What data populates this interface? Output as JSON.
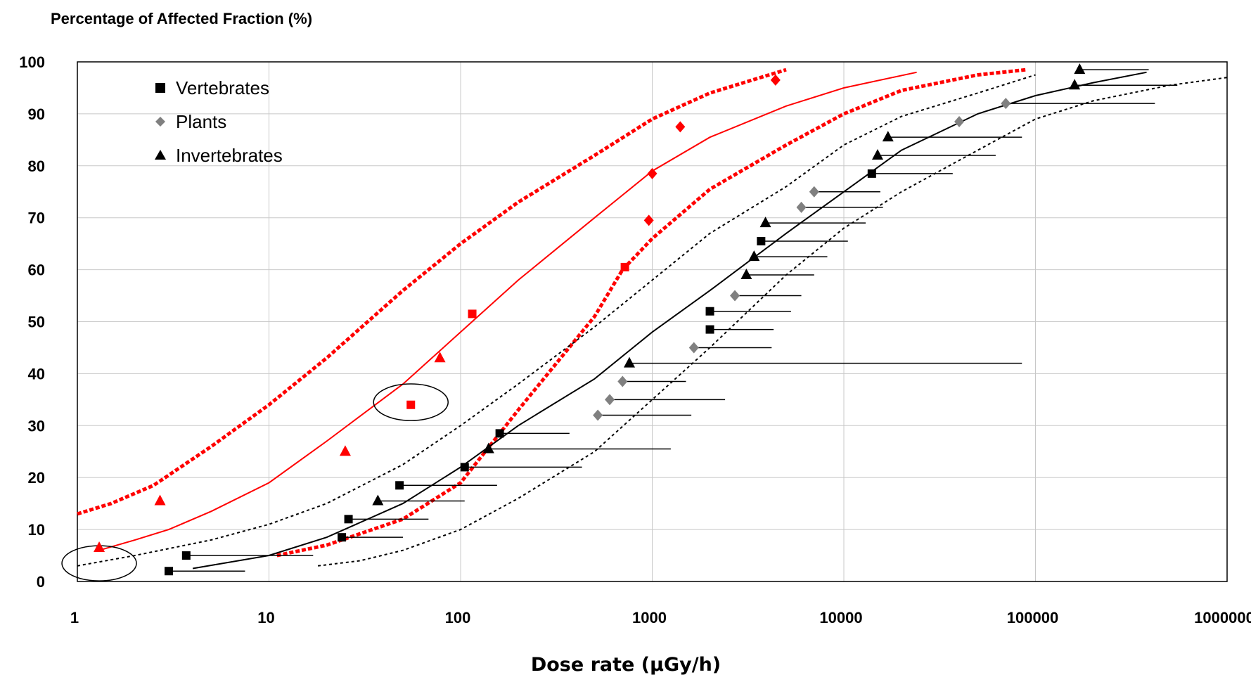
{
  "chart_data": {
    "type": "scatter",
    "title": "Percentage of Affected Fraction (%)",
    "xlabel": "Dose rate (µGy/h)",
    "ylabel": "Percentage of Affected Fraction (%)",
    "x_scale": "log",
    "xlim": [
      1,
      1000000
    ],
    "ylim": [
      0,
      100
    ],
    "grid": true,
    "legend_position": "top-left",
    "x_ticks": [
      "1",
      "10",
      "100",
      "1000",
      "10000",
      "100000",
      "1000000"
    ],
    "y_ticks": [
      "0",
      "10",
      "20",
      "30",
      "40",
      "50",
      "60",
      "70",
      "80",
      "90",
      "100"
    ],
    "legend": [
      {
        "label": "Vertebrates",
        "marker": "square"
      },
      {
        "label": "Plants",
        "marker": "diamond"
      },
      {
        "label": "Invertebrates",
        "marker": "triangle"
      }
    ],
    "colors": {
      "black": "#000000",
      "red": "#ff0000",
      "gray": "#808080"
    },
    "black_points": [
      {
        "group": "Vertebrates",
        "marker": "square",
        "x": 3.0,
        "y": 2,
        "x_upper": 7.5
      },
      {
        "group": "Vertebrates",
        "marker": "square",
        "x": 3.7,
        "y": 5,
        "x_upper": 17
      },
      {
        "group": "Vertebrates",
        "marker": "square",
        "x": 24,
        "y": 8.5,
        "x_upper": 50
      },
      {
        "group": "Vertebrates",
        "marker": "square",
        "x": 26,
        "y": 12,
        "x_upper": 68
      },
      {
        "group": "Vertebrates",
        "marker": "square",
        "x": 48,
        "y": 18.5,
        "x_upper": 155
      },
      {
        "group": "Vertebrates",
        "marker": "square",
        "x": 105,
        "y": 22,
        "x_upper": 430
      },
      {
        "group": "Vertebrates",
        "marker": "square",
        "x": 160,
        "y": 28.5,
        "x_upper": 370
      },
      {
        "group": "Vertebrates",
        "marker": "square",
        "x": 2000,
        "y": 48.5,
        "x_upper": 4300
      },
      {
        "group": "Vertebrates",
        "marker": "square",
        "x": 2000,
        "y": 52,
        "x_upper": 5300
      },
      {
        "group": "Vertebrates",
        "marker": "square",
        "x": 3700,
        "y": 65.5,
        "x_upper": 10500
      },
      {
        "group": "Vertebrates",
        "marker": "square",
        "x": 14000,
        "y": 78.5,
        "x_upper": 37000
      },
      {
        "group": "Plants",
        "marker": "diamond",
        "x": 520,
        "y": 32,
        "x_upper": 1600
      },
      {
        "group": "Plants",
        "marker": "diamond",
        "x": 600,
        "y": 35,
        "x_upper": 2400
      },
      {
        "group": "Plants",
        "marker": "diamond",
        "x": 700,
        "y": 38.5,
        "x_upper": 1500
      },
      {
        "group": "Plants",
        "marker": "diamond",
        "x": 1650,
        "y": 45,
        "x_upper": 4200
      },
      {
        "group": "Plants",
        "marker": "diamond",
        "x": 2700,
        "y": 55,
        "x_upper": 6000
      },
      {
        "group": "Plants",
        "marker": "diamond",
        "x": 6000,
        "y": 72,
        "x_upper": 16000
      },
      {
        "group": "Plants",
        "marker": "diamond",
        "x": 7000,
        "y": 75,
        "x_upper": 15500
      },
      {
        "group": "Plants",
        "marker": "diamond",
        "x": 40000,
        "y": 88.5
      },
      {
        "group": "Plants",
        "marker": "diamond",
        "x": 70000,
        "y": 92,
        "x_upper": 420000
      },
      {
        "group": "Invertebrates",
        "marker": "triangle",
        "x": 37,
        "y": 15.5,
        "x_upper": 105
      },
      {
        "group": "Invertebrates",
        "marker": "triangle",
        "x": 140,
        "y": 25.5,
        "x_upper": 1250
      },
      {
        "group": "Invertebrates",
        "marker": "triangle",
        "x": 760,
        "y": 42,
        "x_upper": 85000
      },
      {
        "group": "Invertebrates",
        "marker": "triangle",
        "x": 3100,
        "y": 59,
        "x_upper": 7000
      },
      {
        "group": "Invertebrates",
        "marker": "triangle",
        "x": 3400,
        "y": 62.5,
        "x_upper": 8200
      },
      {
        "group": "Invertebrates",
        "marker": "triangle",
        "x": 3900,
        "y": 69,
        "x_upper": 13000
      },
      {
        "group": "Invertebrates",
        "marker": "triangle",
        "x": 15000,
        "y": 82,
        "x_upper": 62000
      },
      {
        "group": "Invertebrates",
        "marker": "triangle",
        "x": 17000,
        "y": 85.5,
        "x_upper": 85000
      },
      {
        "group": "Invertebrates",
        "marker": "triangle",
        "x": 160000,
        "y": 95.5,
        "x_upper": 550000
      },
      {
        "group": "Invertebrates",
        "marker": "triangle",
        "x": 170000,
        "y": 98.5,
        "x_upper": 390000
      }
    ],
    "red_points": [
      {
        "marker": "triangle",
        "x": 1.3,
        "y": 6.5
      },
      {
        "marker": "triangle",
        "x": 2.7,
        "y": 15.5
      },
      {
        "marker": "triangle",
        "x": 25,
        "y": 25
      },
      {
        "marker": "square",
        "x": 55,
        "y": 34
      },
      {
        "marker": "triangle",
        "x": 78,
        "y": 43
      },
      {
        "marker": "square",
        "x": 115,
        "y": 51.5
      },
      {
        "marker": "square",
        "x": 720,
        "y": 60.5
      },
      {
        "marker": "diamond",
        "x": 960,
        "y": 69.5
      },
      {
        "marker": "diamond",
        "x": 1000,
        "y": 78.5
      },
      {
        "marker": "diamond",
        "x": 1400,
        "y": 87.5
      },
      {
        "marker": "diamond",
        "x": 4400,
        "y": 96.5
      }
    ],
    "curves": [
      {
        "color": "red",
        "style": "solid",
        "points": [
          [
            1.3,
            6
          ],
          [
            2,
            8
          ],
          [
            3,
            10
          ],
          [
            5,
            13.5
          ],
          [
            10,
            19
          ],
          [
            20,
            27
          ],
          [
            50,
            38
          ],
          [
            100,
            48
          ],
          [
            200,
            58
          ],
          [
            500,
            70
          ],
          [
            1000,
            79
          ],
          [
            2000,
            85.5
          ],
          [
            5000,
            91.5
          ],
          [
            10000,
            95
          ],
          [
            24000,
            98
          ]
        ]
      },
      {
        "color": "red",
        "style": "dashed",
        "points": [
          [
            1,
            13
          ],
          [
            1.5,
            15
          ],
          [
            2.5,
            18.5
          ],
          [
            5,
            26
          ],
          [
            10,
            34
          ],
          [
            20,
            43
          ],
          [
            50,
            56
          ],
          [
            100,
            65
          ],
          [
            200,
            73
          ],
          [
            500,
            82
          ],
          [
            1000,
            89
          ],
          [
            2000,
            94
          ],
          [
            5000,
            98.5
          ]
        ]
      },
      {
        "color": "red",
        "style": "dashed",
        "points": [
          [
            11,
            5
          ],
          [
            20,
            7
          ],
          [
            50,
            12
          ],
          [
            100,
            19
          ],
          [
            200,
            33
          ],
          [
            500,
            51
          ],
          [
            700,
            60
          ],
          [
            1000,
            66
          ],
          [
            2000,
            75.5
          ],
          [
            5000,
            84
          ],
          [
            10000,
            90
          ],
          [
            20000,
            94.5
          ],
          [
            50000,
            97.5
          ],
          [
            90000,
            98.5
          ]
        ]
      },
      {
        "color": "black",
        "style": "solid",
        "points": [
          [
            4,
            2.5
          ],
          [
            10,
            5
          ],
          [
            20,
            8.5
          ],
          [
            50,
            15
          ],
          [
            100,
            22
          ],
          [
            200,
            30
          ],
          [
            500,
            39
          ],
          [
            1000,
            48
          ],
          [
            2000,
            56
          ],
          [
            5000,
            67
          ],
          [
            10000,
            75
          ],
          [
            20000,
            83
          ],
          [
            50000,
            90
          ],
          [
            100000,
            93.5
          ],
          [
            200000,
            96
          ],
          [
            380000,
            98
          ]
        ]
      },
      {
        "color": "black",
        "style": "dotted",
        "points": [
          [
            1,
            3
          ],
          [
            2,
            5
          ],
          [
            5,
            8
          ],
          [
            10,
            11
          ],
          [
            20,
            15
          ],
          [
            50,
            22.5
          ],
          [
            100,
            30
          ],
          [
            200,
            38
          ],
          [
            500,
            49
          ],
          [
            1000,
            58
          ],
          [
            2000,
            67
          ],
          [
            5000,
            76
          ],
          [
            10000,
            84
          ],
          [
            20000,
            89.5
          ],
          [
            50000,
            94
          ],
          [
            100000,
            97.5
          ]
        ]
      },
      {
        "color": "black",
        "style": "dotted",
        "points": [
          [
            18,
            3
          ],
          [
            30,
            4
          ],
          [
            50,
            6
          ],
          [
            100,
            10
          ],
          [
            200,
            16
          ],
          [
            500,
            25
          ],
          [
            1000,
            35
          ],
          [
            2000,
            45
          ],
          [
            5000,
            59
          ],
          [
            10000,
            68
          ],
          [
            20000,
            75
          ],
          [
            50000,
            83
          ],
          [
            100000,
            89
          ],
          [
            200000,
            92.5
          ],
          [
            500000,
            95.5
          ],
          [
            1000000,
            97
          ]
        ]
      }
    ],
    "highlight_ellipses": [
      {
        "cx": 1.3,
        "cy": 3.5
      },
      {
        "cx": 55,
        "cy": 34.5
      }
    ]
  }
}
